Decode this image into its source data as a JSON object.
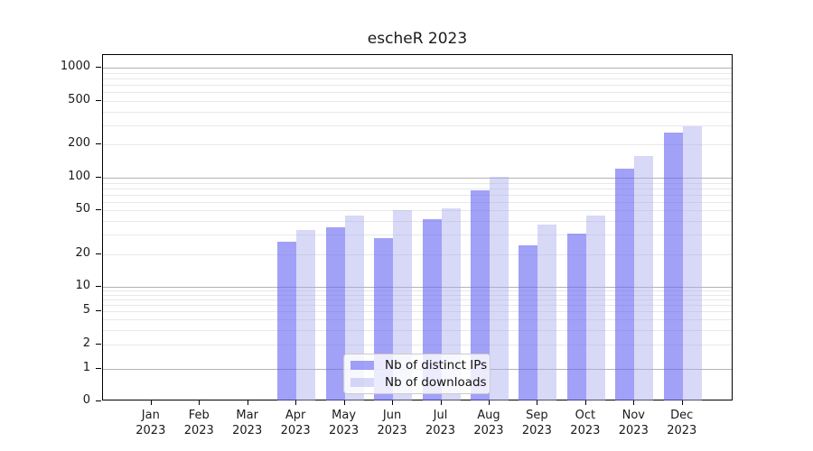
{
  "chart_data": {
    "type": "bar",
    "title": "escheR 2023",
    "categories": [
      "Jan 2023",
      "Feb 2023",
      "Mar 2023",
      "Apr 2023",
      "May 2023",
      "Jun 2023",
      "Jul 2023",
      "Aug 2023",
      "Sep 2023",
      "Oct 2023",
      "Nov 2023",
      "Dec 2023"
    ],
    "series": [
      {
        "name": "Nb of distinct IPs",
        "color": "rgba(104,104,242,0.62)",
        "values": [
          0,
          0,
          0,
          26,
          35,
          28,
          42,
          77,
          24,
          31,
          120,
          258
        ]
      },
      {
        "name": "Nb of downloads",
        "color": "rgba(168,168,238,0.45)",
        "values": [
          0,
          0,
          0,
          33,
          45,
          50,
          52,
          101,
          37,
          45,
          158,
          295
        ]
      }
    ],
    "xlabel": "",
    "ylabel": "",
    "y_axis": {
      "scale": "log-like (0,1 then log decades)",
      "ticks": [
        0,
        1,
        2,
        5,
        10,
        20,
        50,
        100,
        200,
        500,
        1000
      ],
      "tick_labels": [
        "0",
        "1",
        "2",
        "5",
        "10",
        "20",
        "50",
        "100",
        "200",
        "500",
        "1000"
      ],
      "ylim": [
        0,
        1400
      ]
    },
    "grid": "horizontal, major on powers of 10, minor on 2-9 multiples",
    "legend_position": "inside bottom-center"
  },
  "colors": {
    "grid_major": "#b3b3b3",
    "grid_minor": "#e8e8e8",
    "spine": "#000000",
    "text": "#1a1a1a",
    "legend_border": "#cccccc",
    "legend_background": "rgba(255,255,255,0.8)"
  }
}
